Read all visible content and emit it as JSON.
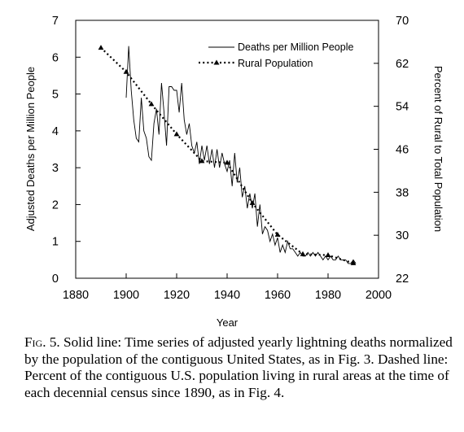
{
  "chart_data": {
    "type": "line",
    "xlabel": "Year",
    "ylabel_left": "Adjusted Deaths per Million People",
    "ylabel_right": "Percent of Rural to Total Population",
    "xlim": [
      1880,
      2000
    ],
    "ylim_left": [
      0,
      7
    ],
    "ylim_right": [
      22,
      70
    ],
    "x_ticks": [
      "1880",
      "1900",
      "1920",
      "1940",
      "1960",
      "1980",
      "2000"
    ],
    "y_left_ticks": [
      "0",
      "1",
      "2",
      "3",
      "4",
      "5",
      "6",
      "7"
    ],
    "y_right_ticks": [
      "22",
      "30",
      "38",
      "46",
      "54",
      "62",
      "70"
    ],
    "grid": false,
    "legend_position": "top-right",
    "series": [
      {
        "name": "Deaths per Million People",
        "axis": "left",
        "style": "solid",
        "x": [
          1900,
          1901,
          1902,
          1903,
          1904,
          1905,
          1906,
          1907,
          1908,
          1909,
          1910,
          1911,
          1912,
          1913,
          1914,
          1915,
          1916,
          1917,
          1918,
          1919,
          1920,
          1921,
          1922,
          1923,
          1924,
          1925,
          1926,
          1927,
          1928,
          1929,
          1930,
          1931,
          1932,
          1933,
          1934,
          1935,
          1936,
          1937,
          1938,
          1939,
          1940,
          1941,
          1942,
          1943,
          1944,
          1945,
          1946,
          1947,
          1948,
          1949,
          1950,
          1951,
          1952,
          1953,
          1954,
          1955,
          1956,
          1957,
          1958,
          1959,
          1960,
          1961,
          1962,
          1963,
          1964,
          1965,
          1966,
          1967,
          1968,
          1969,
          1970,
          1971,
          1972,
          1973,
          1974,
          1975,
          1976,
          1977,
          1978,
          1979,
          1980,
          1981,
          1982,
          1983,
          1984,
          1985,
          1986,
          1987,
          1988,
          1989,
          1990,
          1991
        ],
        "y": [
          4.9,
          6.3,
          5.1,
          4.3,
          3.8,
          3.7,
          4.9,
          4.0,
          3.8,
          3.3,
          3.2,
          4.2,
          4.6,
          3.9,
          5.3,
          4.5,
          3.6,
          5.2,
          5.2,
          5.1,
          5.1,
          4.5,
          5.3,
          4.3,
          3.9,
          4.2,
          3.6,
          3.4,
          3.7,
          3.1,
          3.6,
          3.2,
          3.6,
          3.1,
          3.5,
          3.0,
          3.5,
          3.0,
          3.4,
          3.1,
          2.9,
          3.2,
          2.5,
          3.4,
          2.6,
          3.0,
          2.2,
          2.5,
          1.9,
          2.3,
          1.9,
          2.3,
          1.4,
          2.0,
          1.2,
          1.4,
          1.3,
          1.0,
          1.2,
          0.9,
          1.1,
          0.7,
          0.9,
          0.7,
          1.0,
          0.8,
          0.8,
          0.7,
          0.6,
          0.7,
          0.6,
          0.6,
          0.7,
          0.6,
          0.7,
          0.6,
          0.7,
          0.6,
          0.5,
          0.6,
          0.5,
          0.6,
          0.5,
          0.5,
          0.6,
          0.5,
          0.5,
          0.5,
          0.4,
          0.4,
          0.5,
          0.4
        ]
      },
      {
        "name": "Rural Population",
        "axis": "right",
        "style": "dotted",
        "x": [
          1890,
          1900,
          1910,
          1920,
          1930,
          1940,
          1950,
          1960,
          1970,
          1980,
          1990
        ],
        "y": [
          64.9,
          60.4,
          54.4,
          48.8,
          43.8,
          43.5,
          36.0,
          30.1,
          26.5,
          26.3,
          24.8
        ]
      }
    ]
  },
  "caption": {
    "fig_label": "Fig. 5.",
    "text": " Solid line: Time series of adjusted yearly lightning deaths normalized by the population of the contiguous United States, as in Fig. 3. Dashed line: Percent of the contiguous U.S. population living in rural areas at the time of each decennial census since 1890, as in Fig. 4."
  }
}
